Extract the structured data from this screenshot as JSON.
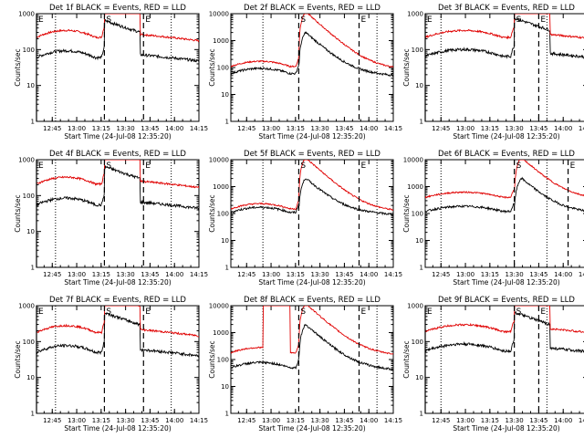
{
  "figure": {
    "background": "#ffffff",
    "colors": {
      "events": "#000000",
      "lld": "#e00000",
      "axes": "#000000"
    }
  },
  "chart_data": [
    {
      "type": "line",
      "title": "Det 1f BLACK = Events, RED = LLD",
      "xlabel": "Start Time (24-Jul-08 12:35:20)",
      "ylabel": "Counts/sec",
      "yscale": "log",
      "ylim": [
        1,
        1000
      ],
      "yticks": [
        "1",
        "10",
        "100",
        "1000"
      ],
      "xticks": [
        "12:45",
        "13:00",
        "13:15",
        "13:30",
        "13:45",
        "14:00",
        "14:15"
      ],
      "markers": [
        {
          "label": "E",
          "type": "solid",
          "x": "12:35:20"
        },
        {
          "label": "S",
          "type": "dashed",
          "x": "13:17"
        },
        {
          "label": "E",
          "type": "dashed",
          "x": "13:41"
        }
      ],
      "dotted_lines": [
        "12:47",
        "13:58"
      ],
      "events": {
        "base": 60,
        "peak": 600
      },
      "lld": {
        "base": 220,
        "peak": 2000
      },
      "shape": "simple",
      "series": [
        {
          "name": "Events",
          "color": "#000000"
        },
        {
          "name": "LLD",
          "color": "#e00000"
        }
      ]
    },
    {
      "type": "line",
      "title": "Det 2f BLACK = Events, RED = LLD",
      "xlabel": "Start Time (24-Jul-08 12:35:20)",
      "ylabel": "Counts/sec",
      "yscale": "log",
      "ylim": [
        1,
        10000
      ],
      "yticks": [
        "1",
        "10",
        "100",
        "1000",
        "10000"
      ],
      "xticks": [
        "12:45",
        "13:00",
        "13:15",
        "13:30",
        "13:45",
        "14:00",
        "14:15"
      ],
      "markers": [
        {
          "label": "S",
          "type": "dashed",
          "x": "13:17"
        },
        {
          "label": "E",
          "type": "dashed",
          "x": "13:54"
        }
      ],
      "dotted_lines": [
        "12:55",
        "14:05"
      ],
      "events": {
        "base": 60,
        "peak": 2000
      },
      "lld": {
        "base": 110,
        "peak": 12000
      },
      "shape": "flare",
      "series": [
        {
          "name": "Events",
          "color": "#000000"
        },
        {
          "name": "LLD",
          "color": "#e00000"
        }
      ]
    },
    {
      "type": "line",
      "title": "Det 3f BLACK = Events, RED = LLD",
      "xlabel": "Start Time (24-Jul-08 12:35:20)",
      "ylabel": "Counts/sec",
      "yscale": "log",
      "ylim": [
        1,
        1000
      ],
      "yticks": [
        "1",
        "10",
        "100",
        "1000"
      ],
      "xticks": [
        "12:45",
        "13:00",
        "13:15",
        "13:30",
        "13:45",
        "14:00",
        "14:15"
      ],
      "markers": [
        {
          "label": "E",
          "type": "solid",
          "x": "12:35:20"
        },
        {
          "label": "S",
          "type": "dashed",
          "x": "13:30"
        },
        {
          "label": "E",
          "type": "dashed",
          "x": "13:45"
        }
      ],
      "dotted_lines": [
        "12:45",
        "13:50"
      ],
      "events": {
        "base": 65,
        "peak": 700
      },
      "lld": {
        "base": 220,
        "peak": 2000
      },
      "shape": "simple",
      "series": [
        {
          "name": "Events",
          "color": "#000000"
        },
        {
          "name": "LLD",
          "color": "#e00000"
        }
      ]
    },
    {
      "type": "line",
      "title": "Det 4f BLACK = Events, RED = LLD",
      "xlabel": "Start Time (24-Jul-08 12:35:20)",
      "ylabel": "Counts/sec",
      "yscale": "log",
      "ylim": [
        1,
        1000
      ],
      "yticks": [
        "1",
        "10",
        "100",
        "1000"
      ],
      "xticks": [
        "12:45",
        "13:00",
        "13:15",
        "13:30",
        "13:45",
        "14:00",
        "14:15"
      ],
      "markers": [
        {
          "label": "E",
          "type": "solid",
          "x": "12:35:20"
        },
        {
          "label": "S",
          "type": "dashed",
          "x": "13:17"
        },
        {
          "label": "E",
          "type": "dashed",
          "x": "13:41"
        }
      ],
      "dotted_lines": [
        "12:47",
        "13:58"
      ],
      "events": {
        "base": 55,
        "peak": 600
      },
      "lld": {
        "base": 210,
        "peak": 2000
      },
      "shape": "simple",
      "series": [
        {
          "name": "Events",
          "color": "#000000"
        },
        {
          "name": "LLD",
          "color": "#e00000"
        }
      ]
    },
    {
      "type": "line",
      "title": "Det 5f BLACK = Events, RED = LLD",
      "xlabel": "Start Time (24-Jul-08 12:35:20)",
      "ylabel": "Counts/sec",
      "yscale": "log",
      "ylim": [
        1,
        10000
      ],
      "yticks": [
        "1",
        "10",
        "100",
        "1000",
        "10000"
      ],
      "xticks": [
        "12:45",
        "13:00",
        "13:15",
        "13:30",
        "13:45",
        "14:00",
        "14:15"
      ],
      "markers": [
        {
          "label": "S",
          "type": "dashed",
          "x": "13:17"
        },
        {
          "label": "E",
          "type": "dashed",
          "x": "13:54"
        }
      ],
      "dotted_lines": [
        "12:55",
        "14:05"
      ],
      "events": {
        "base": 110,
        "peak": 2000
      },
      "lld": {
        "base": 150,
        "peak": 12000
      },
      "shape": "flare",
      "series": [
        {
          "name": "Events",
          "color": "#000000"
        },
        {
          "name": "LLD",
          "color": "#e00000"
        }
      ]
    },
    {
      "type": "line",
      "title": "Det 6f BLACK = Events, RED = LLD",
      "xlabel": "Start Time (24-Jul-08 12:35:20)",
      "ylabel": "Counts/sec",
      "yscale": "log",
      "ylim": [
        1,
        10000
      ],
      "yticks": [
        "1",
        "10",
        "100",
        "1000",
        "10000"
      ],
      "xticks": [
        "12:45",
        "13:00",
        "13:15",
        "13:30",
        "13:45",
        "14:00",
        "14:15"
      ],
      "markers": [
        {
          "label": "S",
          "type": "dashed",
          "x": "13:30"
        },
        {
          "label": "E",
          "type": "dashed",
          "x": "14:03"
        }
      ],
      "dotted_lines": [
        "12:45",
        "13:50"
      ],
      "events": {
        "base": 120,
        "peak": 2000
      },
      "lld": {
        "base": 400,
        "peak": 12000
      },
      "shape": "flare",
      "series": [
        {
          "name": "Events",
          "color": "#000000"
        },
        {
          "name": "LLD",
          "color": "#e00000"
        }
      ]
    },
    {
      "type": "line",
      "title": "Det 7f BLACK = Events, RED = LLD",
      "xlabel": "Start Time (24-Jul-08 12:35:20)",
      "ylabel": "Counts/sec",
      "yscale": "log",
      "ylim": [
        1,
        1000
      ],
      "yticks": [
        "1",
        "10",
        "100",
        "1000"
      ],
      "xticks": [
        "12:45",
        "13:00",
        "13:15",
        "13:30",
        "13:45",
        "14:00",
        "14:15"
      ],
      "markers": [
        {
          "label": "E",
          "type": "solid",
          "x": "12:35:20"
        },
        {
          "label": "S",
          "type": "dashed",
          "x": "13:17"
        },
        {
          "label": "E",
          "type": "dashed",
          "x": "13:41"
        }
      ],
      "dotted_lines": [
        "12:47",
        "13:58"
      ],
      "events": {
        "base": 50,
        "peak": 600
      },
      "lld": {
        "base": 180,
        "peak": 2000
      },
      "shape": "simple",
      "series": [
        {
          "name": "Events",
          "color": "#000000"
        },
        {
          "name": "LLD",
          "color": "#e00000"
        }
      ]
    },
    {
      "type": "line",
      "title": "Det 8f BLACK = Events, RED = LLD",
      "xlabel": "Start Time (24-Jul-08 12:35:20)",
      "ylabel": "Counts/sec",
      "yscale": "log",
      "ylim": [
        1,
        10000
      ],
      "yticks": [
        "1",
        "10",
        "100",
        "1000",
        "10000"
      ],
      "xticks": [
        "12:45",
        "13:00",
        "13:15",
        "13:30",
        "13:45",
        "14:00",
        "14:15"
      ],
      "markers": [
        {
          "label": "S",
          "type": "dashed",
          "x": "13:17"
        },
        {
          "label": "E",
          "type": "dashed",
          "x": "13:54"
        }
      ],
      "dotted_lines": [
        "12:55",
        "14:05"
      ],
      "events": {
        "base": 50,
        "peak": 2000
      },
      "lld": {
        "base": 180,
        "peak": 12000
      },
      "shape": "flare2",
      "series": [
        {
          "name": "Events",
          "color": "#000000"
        },
        {
          "name": "LLD",
          "color": "#e00000"
        }
      ]
    },
    {
      "type": "line",
      "title": "Det 9f BLACK = Events, RED = LLD",
      "xlabel": "Start Time (24-Jul-08 12:35:20)",
      "ylabel": "Counts/sec",
      "yscale": "log",
      "ylim": [
        1,
        1000
      ],
      "yticks": [
        "1",
        "10",
        "100",
        "1000"
      ],
      "xticks": [
        "12:45",
        "13:00",
        "13:15",
        "13:30",
        "13:45",
        "14:00",
        "14:15"
      ],
      "markers": [
        {
          "label": "E",
          "type": "solid",
          "x": "12:35:20"
        },
        {
          "label": "S",
          "type": "dashed",
          "x": "13:30"
        },
        {
          "label": "E",
          "type": "dashed",
          "x": "13:45"
        }
      ],
      "dotted_lines": [
        "12:45",
        "13:50"
      ],
      "events": {
        "base": 55,
        "peak": 600
      },
      "lld": {
        "base": 190,
        "peak": 2000
      },
      "shape": "simple",
      "series": [
        {
          "name": "Events",
          "color": "#000000"
        },
        {
          "name": "LLD",
          "color": "#e00000"
        }
      ]
    }
  ]
}
